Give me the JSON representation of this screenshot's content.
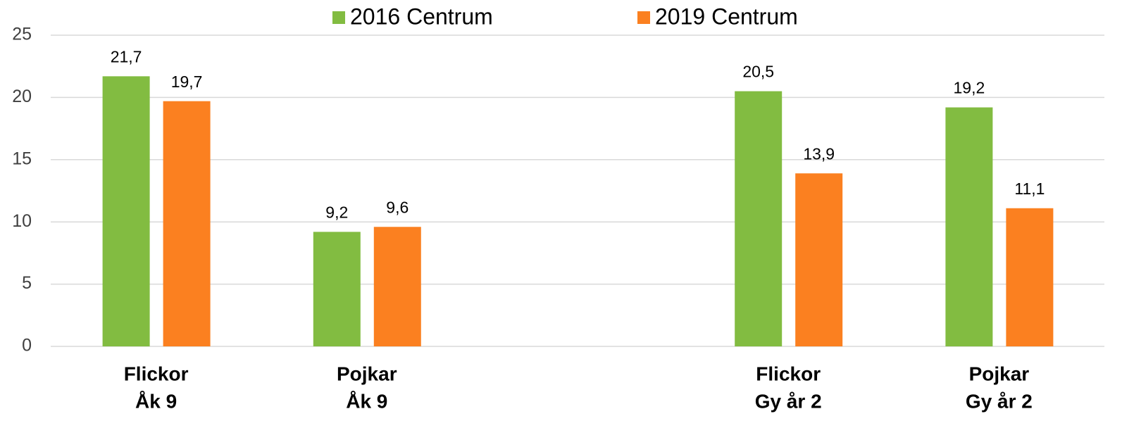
{
  "chart_data": {
    "type": "bar",
    "categories": [
      [
        "Flickor",
        "Åk 9"
      ],
      [
        "Pojkar",
        "Åk 9"
      ],
      null,
      [
        "Flickor",
        "Gy år 2"
      ],
      [
        "Pojkar",
        "Gy år 2"
      ]
    ],
    "series": [
      {
        "name": "2016 Centrum",
        "color": "#82bc41",
        "values": [
          21.7,
          9.2,
          null,
          20.5,
          19.2
        ],
        "value_labels": [
          "21,7",
          "9,2",
          null,
          "20,5",
          "19,2"
        ]
      },
      {
        "name": "2019 Centrum",
        "color": "#fb8020",
        "values": [
          19.7,
          9.6,
          null,
          13.9,
          11.1
        ],
        "value_labels": [
          "19,7",
          "9,6",
          null,
          "13,9",
          "11,1"
        ]
      }
    ],
    "ylim": [
      0,
      25
    ],
    "yticks": [
      0,
      5,
      10,
      15,
      20,
      25
    ],
    "grid": true,
    "legend": "top"
  }
}
